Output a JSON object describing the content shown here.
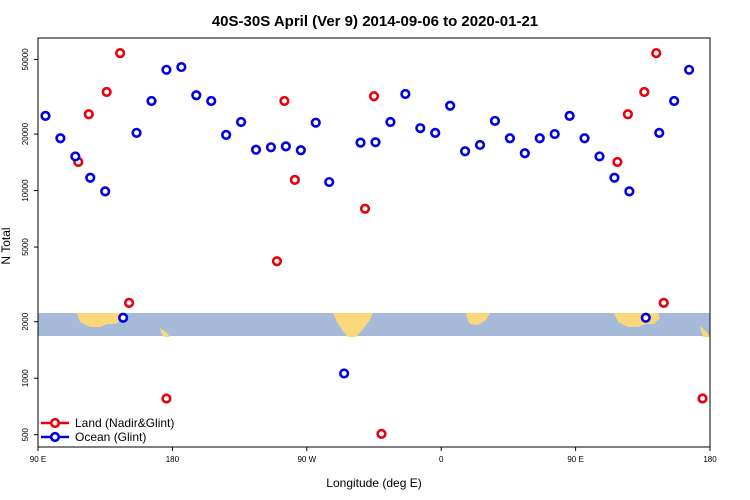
{
  "chart_data": {
    "type": "scatter",
    "title": "40S-30S April (Ver 9)   2014-09-06 to 2020-01-21",
    "xlabel": "Longitude (deg E)",
    "ylabel": "N Total",
    "y_scale": "log",
    "xlim": [
      90,
      540
    ],
    "ylim": [
      430,
      65000
    ],
    "x_ticks": [
      {
        "value": 90,
        "label": "90 E"
      },
      {
        "value": 180,
        "label": "180"
      },
      {
        "value": 270,
        "label": "90 W"
      },
      {
        "value": 360,
        "label": "0"
      },
      {
        "value": 450,
        "label": "90 E"
      },
      {
        "value": 540,
        "label": "180"
      }
    ],
    "y_ticks": [
      {
        "value": 500,
        "label": "500"
      },
      {
        "value": 1000,
        "label": "1000"
      },
      {
        "value": 2000,
        "label": "2000"
      },
      {
        "value": 5000,
        "label": "5000"
      },
      {
        "value": 10000,
        "label": "10000"
      },
      {
        "value": 20000,
        "label": "20000"
      },
      {
        "value": 50000,
        "label": "50000"
      }
    ],
    "legend_position": "bottom-left",
    "series": [
      {
        "name": "Land (Nadir&Glint)",
        "color": "#e8000b",
        "points": [
          [
            117,
            14200
          ],
          [
            124,
            25500
          ],
          [
            136,
            33500
          ],
          [
            145,
            54000
          ],
          [
            151,
            2520
          ],
          [
            176,
            780
          ],
          [
            250,
            4200
          ],
          [
            255,
            30000
          ],
          [
            262,
            11400
          ],
          [
            309,
            8000
          ],
          [
            315,
            31800
          ],
          [
            320,
            505
          ],
          [
            478,
            14200
          ],
          [
            485,
            25500
          ],
          [
            496,
            33500
          ],
          [
            504,
            54000
          ],
          [
            509,
            2520
          ],
          [
            535,
            780
          ]
        ]
      },
      {
        "name": "Ocean (Glint)",
        "color": "#0000e0",
        "points": [
          [
            95,
            25000
          ],
          [
            105,
            19000
          ],
          [
            115,
            15200
          ],
          [
            125,
            11700
          ],
          [
            135,
            9900
          ],
          [
            147,
            2100
          ],
          [
            156,
            20300
          ],
          [
            166,
            30000
          ],
          [
            176,
            44000
          ],
          [
            186,
            45500
          ],
          [
            196,
            32200
          ],
          [
            206,
            30000
          ],
          [
            216,
            19800
          ],
          [
            226,
            23200
          ],
          [
            236,
            16500
          ],
          [
            246,
            17000
          ],
          [
            256,
            17200
          ],
          [
            266,
            16400
          ],
          [
            276,
            23000
          ],
          [
            285,
            11100
          ],
          [
            295,
            1060
          ],
          [
            306,
            18000
          ],
          [
            316,
            18100
          ],
          [
            326,
            23200
          ],
          [
            336,
            32700
          ],
          [
            346,
            21500
          ],
          [
            356,
            20300
          ],
          [
            366,
            28300
          ],
          [
            376,
            16200
          ],
          [
            386,
            17500
          ],
          [
            396,
            23500
          ],
          [
            406,
            19000
          ],
          [
            416,
            15800
          ],
          [
            426,
            19000
          ],
          [
            436,
            20000
          ],
          [
            446,
            25000
          ],
          [
            456,
            19000
          ],
          [
            466,
            15200
          ],
          [
            476,
            11700
          ],
          [
            486,
            9900
          ],
          [
            497,
            2100
          ],
          [
            506,
            20300
          ],
          [
            516,
            30000
          ],
          [
            526,
            44000
          ]
        ]
      }
    ]
  }
}
